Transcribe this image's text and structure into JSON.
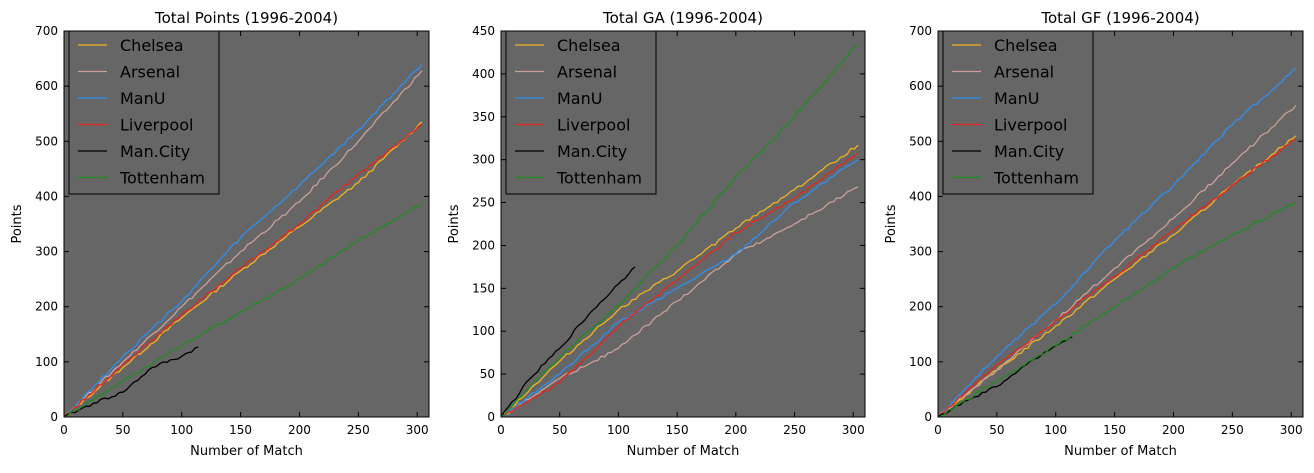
{
  "colors": {
    "background": "#ffffff",
    "plot_bg": "#666666",
    "Chelsea": "#f2b21f",
    "Arsenal": "#c9a09a",
    "ManU": "#2f8ff0",
    "Liverpool": "#e8251e",
    "Man.City": "#000000",
    "Tottenham": "#1f8c1f"
  },
  "chart_data": [
    {
      "type": "line",
      "title": "Total Points (1996-2004)",
      "xlabel": "Number of Match",
      "ylabel": "Points",
      "xlim": [
        0,
        310
      ],
      "ylim": [
        0,
        700
      ],
      "xticks": [
        0,
        50,
        100,
        150,
        200,
        250,
        300
      ],
      "yticks": [
        0,
        100,
        200,
        300,
        400,
        500,
        600,
        700
      ],
      "grid": false,
      "legend_position": "top-left",
      "series": [
        {
          "name": "Chelsea",
          "x": [
            0,
            50,
            100,
            150,
            200,
            250,
            304
          ],
          "y": [
            0,
            90,
            180,
            265,
            345,
            425,
            535
          ]
        },
        {
          "name": "Arsenal",
          "x": [
            0,
            50,
            100,
            150,
            200,
            250,
            304
          ],
          "y": [
            0,
            100,
            200,
            300,
            390,
            500,
            628
          ]
        },
        {
          "name": "ManU",
          "x": [
            0,
            50,
            100,
            150,
            200,
            250,
            304
          ],
          "y": [
            0,
            110,
            210,
            325,
            420,
            520,
            640
          ]
        },
        {
          "name": "Liverpool",
          "x": [
            0,
            50,
            100,
            150,
            200,
            250,
            304
          ],
          "y": [
            0,
            95,
            185,
            270,
            350,
            440,
            530
          ]
        },
        {
          "name": "Man.City",
          "x": [
            0,
            25,
            50,
            75,
            100,
            114
          ],
          "y": [
            0,
            25,
            45,
            90,
            110,
            127
          ]
        },
        {
          "name": "Tottenham",
          "x": [
            0,
            50,
            100,
            150,
            200,
            250,
            304
          ],
          "y": [
            0,
            65,
            130,
            190,
            250,
            320,
            387
          ]
        }
      ]
    },
    {
      "type": "line",
      "title": "Total GA (1996-2004)",
      "xlabel": "Number of Match",
      "ylabel": "Points",
      "xlim": [
        0,
        310
      ],
      "ylim": [
        0,
        450
      ],
      "xticks": [
        0,
        50,
        100,
        150,
        200,
        250,
        300
      ],
      "yticks": [
        0,
        50,
        100,
        150,
        200,
        250,
        300,
        350,
        400,
        450
      ],
      "grid": false,
      "legend_position": "top-left",
      "series": [
        {
          "name": "Chelsea",
          "x": [
            0,
            50,
            100,
            150,
            200,
            250,
            304
          ],
          "y": [
            0,
            65,
            125,
            170,
            220,
            265,
            317
          ]
        },
        {
          "name": "Arsenal",
          "x": [
            0,
            50,
            100,
            150,
            200,
            250,
            304
          ],
          "y": [
            0,
            45,
            80,
            135,
            190,
            225,
            268
          ]
        },
        {
          "name": "ManU",
          "x": [
            0,
            50,
            100,
            150,
            200,
            250,
            304
          ],
          "y": [
            0,
            50,
            110,
            150,
            190,
            250,
            300
          ]
        },
        {
          "name": "Liverpool",
          "x": [
            0,
            50,
            100,
            150,
            200,
            250,
            304
          ],
          "y": [
            0,
            40,
            105,
            160,
            215,
            255,
            308
          ]
        },
        {
          "name": "Man.City",
          "x": [
            0,
            25,
            50,
            75,
            100,
            114
          ],
          "y": [
            0,
            45,
            80,
            120,
            155,
            175
          ]
        },
        {
          "name": "Tottenham",
          "x": [
            0,
            50,
            100,
            150,
            200,
            250,
            304
          ],
          "y": [
            0,
            70,
            130,
            200,
            280,
            350,
            435
          ]
        }
      ]
    },
    {
      "type": "line",
      "title": "Total GF (1996-2004)",
      "xlabel": "Number of Match",
      "ylabel": "Points",
      "xlim": [
        0,
        310
      ],
      "ylim": [
        0,
        700
      ],
      "xticks": [
        0,
        50,
        100,
        150,
        200,
        250,
        300
      ],
      "yticks": [
        0,
        100,
        200,
        300,
        400,
        500,
        600,
        700
      ],
      "grid": false,
      "legend_position": "top-left",
      "series": [
        {
          "name": "Chelsea",
          "x": [
            0,
            50,
            100,
            150,
            200,
            250,
            304
          ],
          "y": [
            0,
            85,
            165,
            250,
            330,
            420,
            510
          ]
        },
        {
          "name": "Arsenal",
          "x": [
            0,
            50,
            100,
            150,
            200,
            250,
            304
          ],
          "y": [
            0,
            85,
            175,
            270,
            360,
            460,
            565
          ]
        },
        {
          "name": "ManU",
          "x": [
            0,
            50,
            100,
            150,
            200,
            250,
            304
          ],
          "y": [
            0,
            110,
            205,
            320,
            420,
            530,
            632
          ]
        },
        {
          "name": "Liverpool",
          "x": [
            0,
            50,
            100,
            150,
            200,
            250,
            304
          ],
          "y": [
            0,
            95,
            175,
            255,
            340,
            420,
            505
          ]
        },
        {
          "name": "Man.City",
          "x": [
            0,
            25,
            50,
            75,
            100,
            114
          ],
          "y": [
            0,
            30,
            55,
            95,
            130,
            145
          ]
        },
        {
          "name": "Tottenham",
          "x": [
            0,
            50,
            100,
            150,
            200,
            250,
            304
          ],
          "y": [
            0,
            65,
            130,
            200,
            270,
            330,
            390
          ]
        }
      ]
    }
  ]
}
